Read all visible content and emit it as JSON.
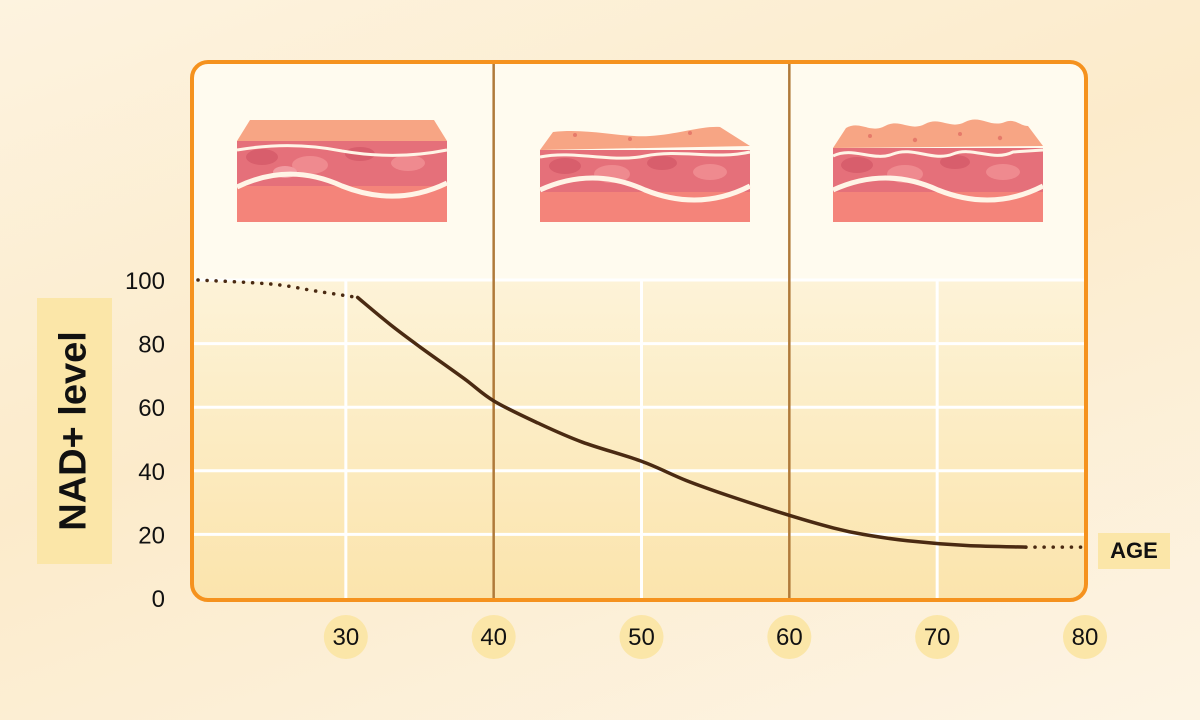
{
  "chart_data": {
    "type": "line",
    "title": "",
    "xlabel": "AGE",
    "ylabel": "NAD+ level",
    "xlim": [
      20,
      80
    ],
    "ylim": [
      0,
      100
    ],
    "y_ticks": [
      0,
      20,
      40,
      60,
      80,
      100
    ],
    "x_ticks": [
      30,
      40,
      50,
      60,
      70,
      80
    ],
    "grid": true,
    "series": [
      {
        "style": "dotted",
        "color": "#4a2a12",
        "points": [
          [
            20,
            100
          ],
          [
            25,
            98.7
          ],
          [
            28,
            96.5
          ],
          [
            30.8,
            94.5
          ]
        ]
      },
      {
        "style": "solid",
        "color": "#4a2a12",
        "points": [
          [
            30.8,
            94.5
          ],
          [
            33,
            86
          ],
          [
            35,
            79
          ],
          [
            38,
            69
          ],
          [
            40,
            62
          ],
          [
            43,
            55
          ],
          [
            46,
            49
          ],
          [
            50,
            43
          ],
          [
            53,
            37
          ],
          [
            56,
            32
          ],
          [
            60,
            26
          ],
          [
            63,
            22
          ],
          [
            65,
            20
          ],
          [
            68,
            18
          ],
          [
            72,
            16.5
          ],
          [
            76,
            16
          ]
        ]
      },
      {
        "style": "dotted",
        "color": "#4a2a12",
        "points": [
          [
            76,
            16
          ],
          [
            80,
            16
          ]
        ]
      }
    ],
    "age_bands": [
      {
        "from": 20,
        "to": 40,
        "skin": "smooth"
      },
      {
        "from": 40,
        "to": 60,
        "skin": "mild-wrinkles"
      },
      {
        "from": 60,
        "to": 80,
        "skin": "deep-wrinkles"
      }
    ],
    "band_divider_color": "#b07a3a",
    "frame_color": "#f5921e",
    "tick_circle_color": "#fbe6a8"
  }
}
